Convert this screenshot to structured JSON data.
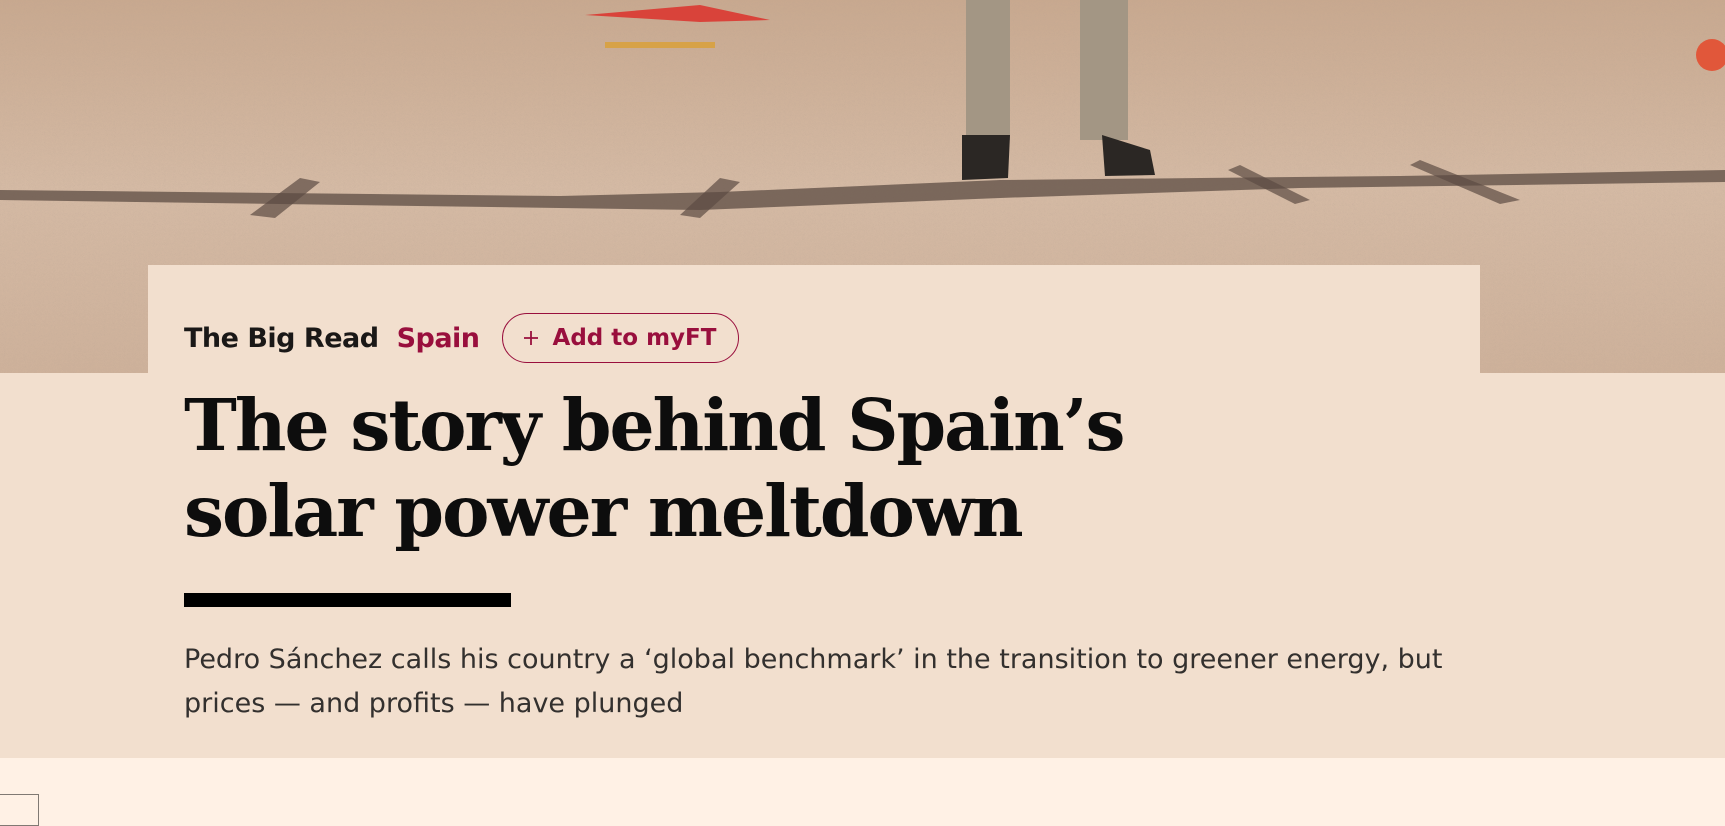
{
  "article": {
    "section": "The Big Read",
    "topic": "Spain",
    "follow_button": "Add to myFT",
    "headline": "The story behind Spain’s solar power meltdown",
    "standfirst": "Pedro Sánchez calls his country a ‘global benchmark’ in the transition to greener energy, but prices — and profits — have plunged"
  }
}
